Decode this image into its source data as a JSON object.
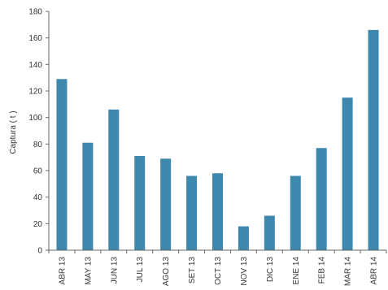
{
  "chart_data": {
    "type": "bar",
    "title": "",
    "xlabel": "",
    "ylabel": "Captura ( t )",
    "ylim": [
      0,
      180
    ],
    "yticks": [
      0,
      20,
      40,
      60,
      80,
      100,
      120,
      140,
      160,
      180
    ],
    "grid": false,
    "categories": [
      "ABR 13",
      "MAY 13",
      "JUN 13",
      "JUL 13",
      "AGO 13",
      "SET 13",
      "OCT 13",
      "NOV 13",
      "DIC 13",
      "ENE 14",
      "FEB 14",
      "MAR 14",
      "ABR 14"
    ],
    "values": [
      129,
      81,
      106,
      71,
      69,
      56,
      58,
      18,
      26,
      56,
      77,
      115,
      166
    ],
    "bar_color": "#3f88ad",
    "axis_color": "#666666"
  }
}
